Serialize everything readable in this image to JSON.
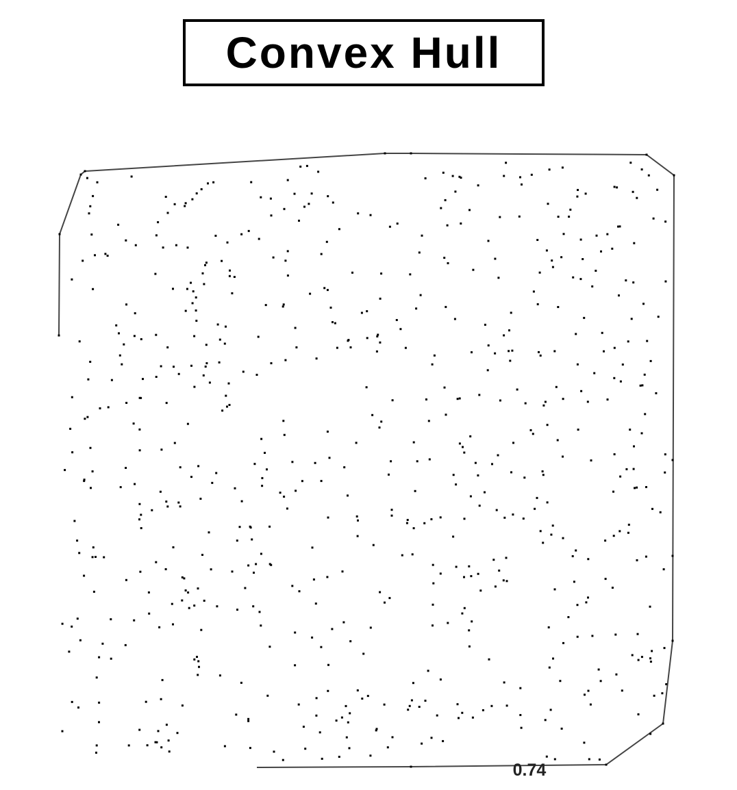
{
  "title": "Convex Hull",
  "edge_label": "0.74",
  "colors": {
    "ink": "#000000",
    "background": "#ffffff"
  }
}
